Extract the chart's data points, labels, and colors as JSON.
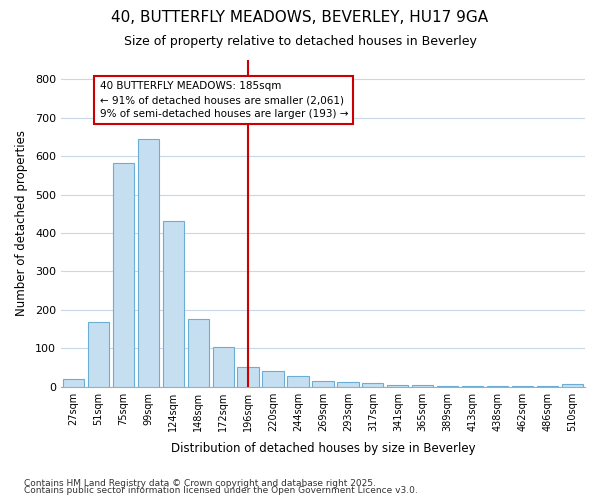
{
  "title1": "40, BUTTERFLY MEADOWS, BEVERLEY, HU17 9GA",
  "title2": "Size of property relative to detached houses in Beverley",
  "xlabel": "Distribution of detached houses by size in Beverley",
  "ylabel": "Number of detached properties",
  "categories": [
    "27sqm",
    "51sqm",
    "75sqm",
    "99sqm",
    "124sqm",
    "148sqm",
    "172sqm",
    "196sqm",
    "220sqm",
    "244sqm",
    "269sqm",
    "293sqm",
    "317sqm",
    "341sqm",
    "365sqm",
    "389sqm",
    "413sqm",
    "438sqm",
    "462sqm",
    "486sqm",
    "510sqm"
  ],
  "values": [
    20,
    168,
    583,
    645,
    430,
    175,
    103,
    52,
    40,
    28,
    16,
    13,
    9,
    5,
    3,
    2,
    1,
    1,
    1,
    1,
    6
  ],
  "bar_color": "#c6dff0",
  "bar_edge_color": "#6aaed6",
  "vline_x_index": 7,
  "vline_color": "#cc0000",
  "annotation_text": "40 BUTTERFLY MEADOWS: 185sqm\n← 91% of detached houses are smaller (2,061)\n9% of semi-detached houses are larger (193) →",
  "annotation_box_color": "#cc0000",
  "ylim": [
    0,
    850
  ],
  "yticks": [
    0,
    100,
    200,
    300,
    400,
    500,
    600,
    700,
    800
  ],
  "background_color": "#ffffff",
  "grid_color": "#c8d8e8",
  "footer1": "Contains HM Land Registry data © Crown copyright and database right 2025.",
  "footer2": "Contains public sector information licensed under the Open Government Licence v3.0."
}
